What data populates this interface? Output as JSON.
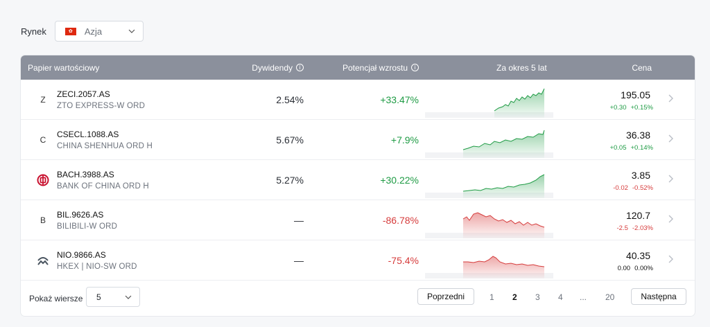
{
  "filter": {
    "label": "Rynek",
    "flag_glyph": "✿",
    "value": "Azja"
  },
  "table": {
    "headers": {
      "security": "Papier wartościowy",
      "dividend": "Dywidendy",
      "potential": "Potencjał wzrostu",
      "period": "Za okres 5 lat",
      "price": "Cena"
    },
    "rows": [
      {
        "logo": "Z",
        "logo_type": "letter",
        "ticker": "ZECI.2057.AS",
        "name": "ZTO EXPRESS-W ORD",
        "dividend": "2.54%",
        "potential": "+33.47%",
        "trend": "up",
        "price": "195.05",
        "change": "+0.30",
        "change_pct": "+0.15%",
        "change_dir": "up"
      },
      {
        "logo": "C",
        "logo_type": "letter",
        "ticker": "CSECL.1088.AS",
        "name": "CHINA SHENHUA ORD H",
        "dividend": "5.67%",
        "potential": "+7.9%",
        "trend": "up",
        "price": "36.38",
        "change": "+0.05",
        "change_pct": "+0.14%",
        "change_dir": "up"
      },
      {
        "logo": "bank-of-china-logo",
        "logo_type": "icon",
        "ticker": "BACH.3988.AS",
        "name": "BANK OF CHINA ORD H",
        "dividend": "5.27%",
        "potential": "+30.22%",
        "trend": "up",
        "price": "3.85",
        "change": "-0.02",
        "change_pct": "-0.52%",
        "change_dir": "down"
      },
      {
        "logo": "B",
        "logo_type": "letter",
        "ticker": "BIL.9626.AS",
        "name": "BILIBILI-W ORD",
        "dividend": "—",
        "potential": "-86.78%",
        "trend": "down",
        "price": "120.7",
        "change": "-2.5",
        "change_pct": "-2.03%",
        "change_dir": "down"
      },
      {
        "logo": "nio-logo",
        "logo_type": "icon",
        "ticker": "NIO.9866.AS",
        "name": "HKEX | NIO-SW ORD",
        "dividend": "—",
        "potential": "-75.4%",
        "trend": "down",
        "price": "40.35",
        "change": "0.00",
        "change_pct": "0.00%",
        "change_dir": "flat"
      }
    ]
  },
  "pagination": {
    "rows_label": "Pokaż wiersze",
    "rows_value": "5",
    "prev": "Poprzedni",
    "next": "Następna",
    "pages": [
      "1",
      "2",
      "3",
      "4",
      "...",
      "20"
    ],
    "current": "2"
  },
  "colors": {
    "up": "#1e9b44",
    "down": "#d63b3b",
    "header_bg": "#8b909c"
  }
}
